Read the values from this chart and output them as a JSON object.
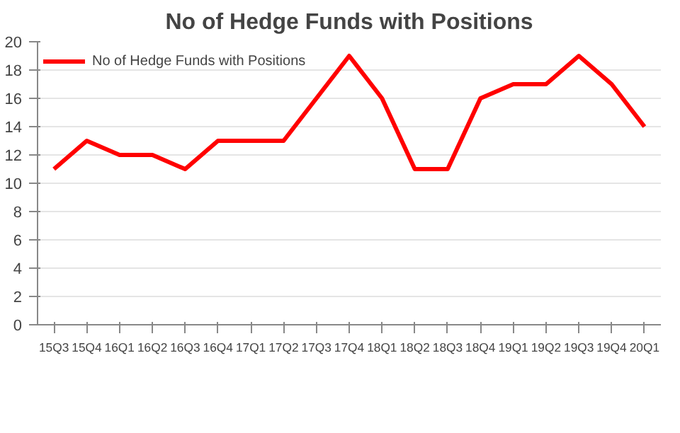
{
  "chart_data": {
    "type": "line",
    "title": "No of Hedge Funds with Positions",
    "categories": [
      "15Q3",
      "15Q4",
      "16Q1",
      "16Q2",
      "16Q3",
      "16Q4",
      "17Q1",
      "17Q2",
      "17Q3",
      "17Q4",
      "18Q1",
      "18Q2",
      "18Q3",
      "18Q4",
      "19Q1",
      "19Q2",
      "19Q3",
      "19Q4",
      "20Q1"
    ],
    "series": [
      {
        "name": "No of Hedge Funds with Positions",
        "color": "#ff0000",
        "values": [
          11,
          13,
          12,
          12,
          11,
          13,
          13,
          13,
          16,
          19,
          16,
          11,
          11,
          16,
          17,
          17,
          19,
          17,
          14
        ]
      }
    ],
    "ylim": [
      0,
      20
    ],
    "yticks": [
      0,
      2,
      4,
      6,
      8,
      10,
      12,
      14,
      16,
      18,
      20
    ],
    "grid": "y",
    "legend": "top left",
    "marker": "none",
    "line_style": "solid"
  }
}
